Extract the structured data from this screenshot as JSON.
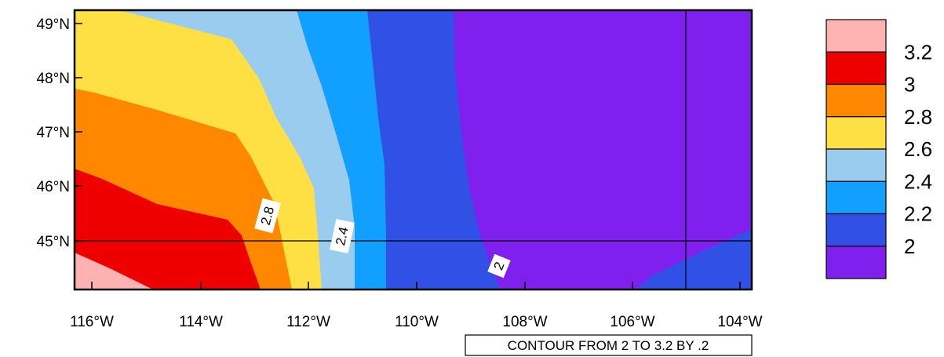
{
  "map": {
    "lat_ticks": [
      "49°N",
      "48°N",
      "47°N",
      "46°N",
      "45°N"
    ],
    "lon_ticks": [
      "116°W",
      "114°W",
      "112°W",
      "110°W",
      "108°W",
      "106°W",
      "104°W"
    ],
    "contour_labels": [
      "2.8",
      "2.4",
      "2"
    ],
    "footer": "CONTOUR FROM 2 TO 3.2 BY .2"
  },
  "legend": {
    "levels": [
      {
        "label": "3.2",
        "color": "#ffb2b2"
      },
      {
        "label": "3",
        "color": "#ee0000"
      },
      {
        "label": "2.8",
        "color": "#ff8800"
      },
      {
        "label": "2.6",
        "color": "#ffe044"
      },
      {
        "label": "2.4",
        "color": "#99ccee"
      },
      {
        "label": "2.2",
        "color": "#11a0ff"
      },
      {
        "label": "2",
        "color": "#3050e6"
      },
      {
        "label": "",
        "color": "#8020ee"
      }
    ]
  }
}
